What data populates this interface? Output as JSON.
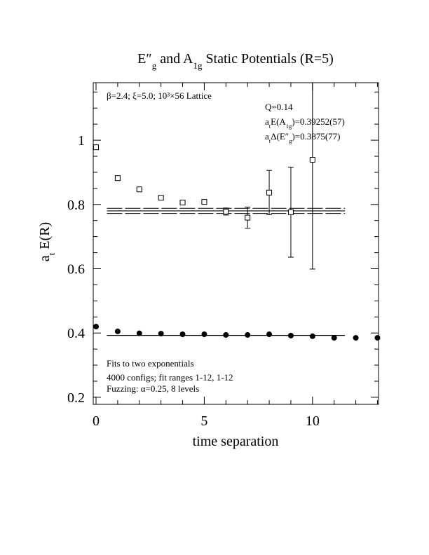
{
  "chart_data": {
    "type": "scatter",
    "title": [
      "E″",
      "g",
      "  and A",
      "1g",
      " Static Potentials (R=5)"
    ],
    "xlabel": "time separation",
    "ylabel": [
      "a",
      "t",
      " E(R)"
    ],
    "xlim": [
      -0.13,
      13.05
    ],
    "ylim": [
      0.178,
      1.179
    ],
    "xticks": [
      0,
      5,
      10
    ],
    "yticks": [
      0.2,
      0.4,
      0.6,
      0.8,
      1
    ],
    "xminorticks": [
      1,
      2,
      3,
      4,
      6,
      7,
      8,
      9,
      11,
      12,
      13
    ],
    "yminorticks": [
      0.25,
      0.3,
      0.35,
      0.45,
      0.5,
      0.55,
      0.65,
      0.7,
      0.75,
      0.85,
      0.9,
      0.95,
      1.05,
      1.1,
      1.15
    ],
    "series": [
      {
        "marker": "square",
        "color": "#000000",
        "x": [
          0,
          1,
          2,
          3,
          4,
          5,
          6,
          7,
          8,
          9,
          10
        ],
        "values": [
          0.978,
          0.882,
          0.847,
          0.821,
          0.806,
          0.808,
          0.778,
          0.759,
          0.837,
          0.776,
          0.939
        ],
        "errors": [
          0.003,
          0.003,
          0.003,
          0.003,
          0.004,
          0.005,
          0.011,
          0.033,
          0.069,
          0.14,
          0.34
        ]
      },
      {
        "marker": "circle",
        "color": "#000000",
        "x": [
          0,
          1,
          2,
          3,
          4,
          5,
          6,
          7,
          8,
          9,
          10,
          11,
          12,
          13
        ],
        "values": [
          0.42,
          0.405,
          0.399,
          0.398,
          0.396,
          0.396,
          0.394,
          0.394,
          0.396,
          0.392,
          0.39,
          0.385,
          0.385,
          0.385
        ]
      }
    ],
    "fits": [
      {
        "value": 0.3925,
        "x": [
          0.5,
          11.5
        ]
      },
      {
        "value": 0.78,
        "error": 0.008,
        "x": [
          0.5,
          11.5
        ]
      }
    ],
    "annotations": [
      "β=2.4; ξ=5.0; 10³×56 Lattice",
      "Q=0.14",
      [
        "a",
        "t",
        "E(A",
        "1g",
        ")=0.39252(57)"
      ],
      [
        "a",
        "t",
        "Δ(E″",
        "g",
        ")=0.3875(77)"
      ],
      "Fits to two exponentials",
      "4000 configs; fit ranges 1-12, 1-12",
      "Fuzzing: α=0.25, 8 levels"
    ]
  }
}
